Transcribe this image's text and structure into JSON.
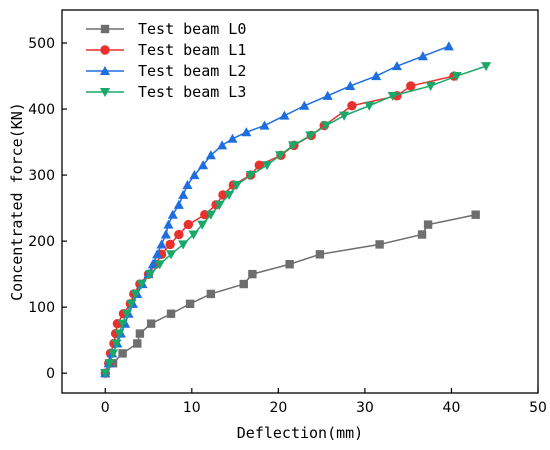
{
  "chart_data": {
    "type": "line",
    "title": "",
    "xlabel": "Deflection(mm)",
    "ylabel": "Concentrated force(KN)",
    "xlim": [
      -5,
      50
    ],
    "ylim": [
      -30,
      550
    ],
    "xticks": [
      0,
      10,
      20,
      30,
      40,
      50
    ],
    "yticks": [
      0,
      100,
      200,
      300,
      400,
      500
    ],
    "grid": false,
    "legend": "top-left",
    "series": [
      {
        "name": "Test beam L0",
        "color": "#6e6e6e",
        "marker": "square",
        "points": [
          [
            0,
            0
          ],
          [
            0.9,
            15
          ],
          [
            2,
            30
          ],
          [
            3.7,
            45
          ],
          [
            4,
            60
          ],
          [
            5.3,
            75
          ],
          [
            7.6,
            90
          ],
          [
            9.8,
            105
          ],
          [
            12.2,
            120
          ],
          [
            16,
            135
          ],
          [
            17,
            150
          ],
          [
            21.3,
            165
          ],
          [
            24.8,
            180
          ],
          [
            31.7,
            195
          ],
          [
            36.6,
            210
          ],
          [
            37.3,
            225
          ],
          [
            42.8,
            240
          ]
        ]
      },
      {
        "name": "Test beam L1",
        "color": "#e8302d",
        "marker": "circle",
        "points": [
          [
            0,
            0
          ],
          [
            0.4,
            15
          ],
          [
            0.6,
            30
          ],
          [
            1,
            45
          ],
          [
            1.2,
            60
          ],
          [
            1.4,
            75
          ],
          [
            2.1,
            90
          ],
          [
            2.9,
            105
          ],
          [
            3.3,
            120
          ],
          [
            4,
            135
          ],
          [
            5,
            150
          ],
          [
            5.8,
            165
          ],
          [
            6.5,
            180
          ],
          [
            7.5,
            195
          ],
          [
            8.5,
            210
          ],
          [
            9.6,
            225
          ],
          [
            11.5,
            240
          ],
          [
            12.8,
            255
          ],
          [
            13.6,
            270
          ],
          [
            14.8,
            285
          ],
          [
            16.8,
            300
          ],
          [
            17.8,
            315
          ],
          [
            20.3,
            330
          ],
          [
            21.8,
            345
          ],
          [
            23.8,
            360
          ],
          [
            25.3,
            375
          ],
          [
            28.5,
            405
          ],
          [
            33.7,
            420
          ],
          [
            35.3,
            435
          ],
          [
            40.3,
            450
          ]
        ]
      },
      {
        "name": "Test beam L2",
        "color": "#1f6ee0",
        "marker": "triangle-up",
        "points": [
          [
            0,
            0
          ],
          [
            0.4,
            15
          ],
          [
            0.8,
            30
          ],
          [
            1.4,
            45
          ],
          [
            1.8,
            60
          ],
          [
            2.3,
            75
          ],
          [
            2.7,
            90
          ],
          [
            3.2,
            105
          ],
          [
            3.7,
            120
          ],
          [
            4.3,
            135
          ],
          [
            5,
            150
          ],
          [
            5.5,
            165
          ],
          [
            6,
            180
          ],
          [
            6.5,
            195
          ],
          [
            7,
            210
          ],
          [
            7.3,
            225
          ],
          [
            7.8,
            240
          ],
          [
            8.5,
            255
          ],
          [
            9,
            270
          ],
          [
            9.5,
            285
          ],
          [
            10.3,
            300
          ],
          [
            11.3,
            315
          ],
          [
            12.2,
            330
          ],
          [
            13.5,
            345
          ],
          [
            14.7,
            355
          ],
          [
            16.3,
            365
          ],
          [
            18.4,
            375
          ],
          [
            20.7,
            390
          ],
          [
            23,
            405
          ],
          [
            25.7,
            420
          ],
          [
            28.3,
            435
          ],
          [
            31.3,
            450
          ],
          [
            33.7,
            465
          ],
          [
            36.7,
            480
          ],
          [
            39.7,
            495
          ]
        ]
      },
      {
        "name": "Test beam L3",
        "color": "#1aa86a",
        "marker": "triangle-down",
        "points": [
          [
            0,
            0
          ],
          [
            0.5,
            15
          ],
          [
            0.9,
            30
          ],
          [
            1.3,
            45
          ],
          [
            1.6,
            60
          ],
          [
            2,
            75
          ],
          [
            2.5,
            90
          ],
          [
            3,
            105
          ],
          [
            3.5,
            120
          ],
          [
            4.2,
            135
          ],
          [
            5.2,
            150
          ],
          [
            6.3,
            165
          ],
          [
            7.6,
            180
          ],
          [
            9,
            195
          ],
          [
            10.2,
            210
          ],
          [
            11.2,
            225
          ],
          [
            12.2,
            240
          ],
          [
            13.2,
            255
          ],
          [
            14.3,
            270
          ],
          [
            15.2,
            285
          ],
          [
            16.8,
            300
          ],
          [
            18.7,
            315
          ],
          [
            20.2,
            330
          ],
          [
            21.7,
            345
          ],
          [
            23.7,
            360
          ],
          [
            25.5,
            375
          ],
          [
            27.6,
            390
          ],
          [
            30.5,
            405
          ],
          [
            33.2,
            420
          ],
          [
            37.6,
            435
          ],
          [
            40.6,
            450
          ],
          [
            44,
            465
          ]
        ]
      }
    ]
  }
}
